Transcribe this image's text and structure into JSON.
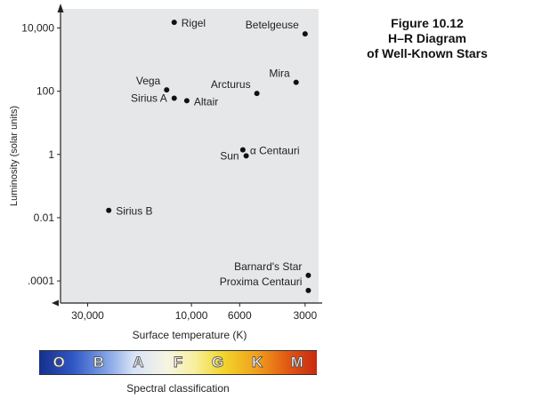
{
  "caption": {
    "line1": "Figure 10.12",
    "line2": "H–R Diagram",
    "line3": "of Well-Known Stars"
  },
  "chart_data": {
    "type": "scatter",
    "xlabel": "Surface temperature (K)",
    "ylabel": "Luminosity (solar units)",
    "x_scale": "log",
    "x_direction": "decreasing",
    "y_scale": "log",
    "xlim": [
      40000,
      2600
    ],
    "ylim": [
      2e-05,
      40000
    ],
    "xticks": [
      {
        "value": 30000,
        "label": "30,000"
      },
      {
        "value": 10000,
        "label": "10,000"
      },
      {
        "value": 6000,
        "label": "6000"
      },
      {
        "value": 3000,
        "label": "3000"
      }
    ],
    "yticks": [
      {
        "value": 10000,
        "label": "10,000"
      },
      {
        "value": 100,
        "label": "100"
      },
      {
        "value": 1,
        "label": "1"
      },
      {
        "value": 0.01,
        "label": "0.01"
      },
      {
        "value": 0.0001,
        "label": ".0001"
      }
    ],
    "grid": false,
    "plot_background": "#e6e7e8",
    "points": [
      {
        "name": "Rigel",
        "x": 12000,
        "y": 15000,
        "label_side": "right"
      },
      {
        "name": "Betelgeuse",
        "x": 3000,
        "y": 6500,
        "label_side": "left-above"
      },
      {
        "name": "Mira",
        "x": 3300,
        "y": 190,
        "label_side": "left-above"
      },
      {
        "name": "Vega",
        "x": 13000,
        "y": 110,
        "label_side": "left-above"
      },
      {
        "name": "Sirius A",
        "x": 12000,
        "y": 60,
        "label_side": "left"
      },
      {
        "name": "Altair",
        "x": 10500,
        "y": 50,
        "label_side": "right"
      },
      {
        "name": "Arcturus",
        "x": 5000,
        "y": 85,
        "label_side": "left-above"
      },
      {
        "name": "α Centauri",
        "x": 5800,
        "y": 1.4,
        "label_side": "right"
      },
      {
        "name": "Sun",
        "x": 5600,
        "y": 0.9,
        "label_side": "left"
      },
      {
        "name": "Sirius B",
        "x": 24000,
        "y": 0.017,
        "label_side": "right"
      },
      {
        "name": "Barnard's Star",
        "x": 2900,
        "y": 0.00015,
        "label_side": "left-above"
      },
      {
        "name": "Proxima Centauri",
        "x": 2900,
        "y": 5e-05,
        "label_side": "left-above"
      }
    ]
  },
  "spectral": {
    "classes": [
      "O",
      "B",
      "A",
      "F",
      "G",
      "K",
      "M"
    ],
    "label": "Spectral classification"
  }
}
